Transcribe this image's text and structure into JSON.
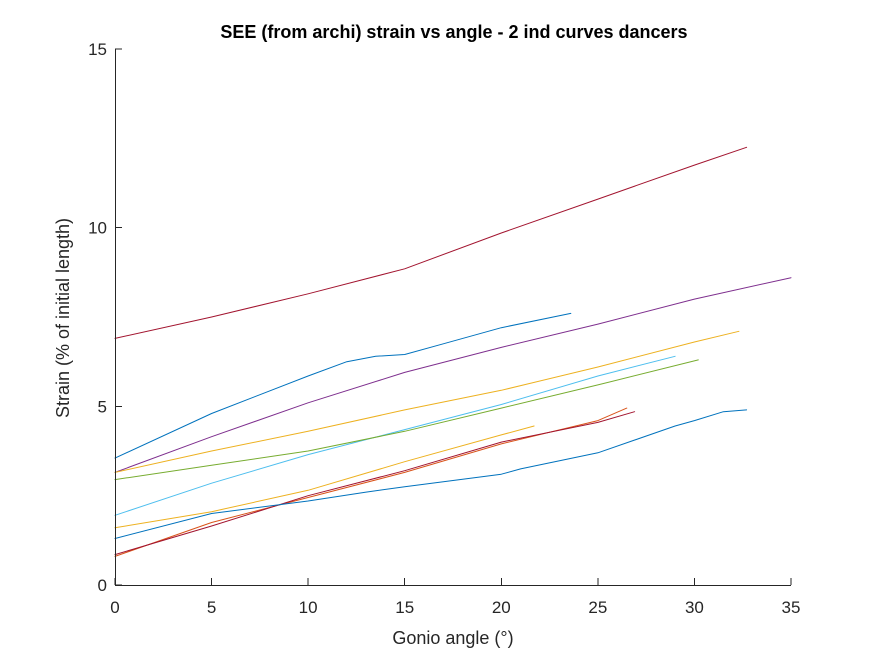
{
  "chart_data": {
    "type": "line",
    "title": "SEE (from archi) strain vs angle - 2 ind curves dancers",
    "xlabel": "Gonio angle (°)",
    "ylabel": "Strain (% of initial length)",
    "xlim": [
      0,
      35
    ],
    "ylim": [
      0,
      15
    ],
    "xticks": [
      0,
      5,
      10,
      15,
      20,
      25,
      30,
      35
    ],
    "yticks": [
      0,
      5,
      10,
      15
    ],
    "grid": false,
    "legend": "none",
    "series": [
      {
        "color": "#A2142F",
        "x": [
          0,
          5,
          10,
          15,
          20,
          25,
          30,
          32.7
        ],
        "y": [
          6.9,
          7.5,
          8.15,
          8.85,
          9.85,
          10.8,
          11.75,
          12.25
        ]
      },
      {
        "color": "#0072BD",
        "x": [
          0,
          5,
          10,
          12,
          13.5,
          15,
          17,
          20,
          23.6
        ],
        "y": [
          3.55,
          4.8,
          5.85,
          6.25,
          6.4,
          6.45,
          6.75,
          7.2,
          7.6
        ]
      },
      {
        "color": "#7E2F8E",
        "x": [
          0,
          5,
          10,
          15,
          20,
          25,
          30,
          35
        ],
        "y": [
          3.15,
          4.15,
          5.1,
          5.95,
          6.65,
          7.3,
          8.0,
          8.6
        ]
      },
      {
        "color": "#EDB120",
        "x": [
          0,
          5,
          10,
          15,
          20,
          25,
          30,
          32.3
        ],
        "y": [
          3.15,
          3.75,
          4.3,
          4.9,
          5.45,
          6.1,
          6.8,
          7.1
        ]
      },
      {
        "color": "#4DBEEE",
        "x": [
          0,
          5,
          10,
          15,
          20,
          25,
          29
        ],
        "y": [
          1.95,
          2.85,
          3.65,
          4.35,
          5.05,
          5.85,
          6.4
        ]
      },
      {
        "color": "#77AC30",
        "x": [
          0,
          5,
          10,
          15,
          20,
          25,
          30.2
        ],
        "y": [
          2.95,
          3.35,
          3.75,
          4.3,
          4.95,
          5.6,
          6.3
        ]
      },
      {
        "color": "#EDB120",
        "x": [
          0,
          5,
          10,
          15,
          20,
          21.7
        ],
        "y": [
          1.6,
          2.05,
          2.65,
          3.45,
          4.2,
          4.45
        ]
      },
      {
        "color": "#D95319",
        "x": [
          0,
          5,
          10,
          15,
          20,
          25,
          26.5
        ],
        "y": [
          0.8,
          1.75,
          2.45,
          3.15,
          3.95,
          4.6,
          4.95
        ]
      },
      {
        "color": "#A2142F",
        "x": [
          0,
          5,
          10,
          15,
          20,
          25,
          26.9
        ],
        "y": [
          0.85,
          1.65,
          2.5,
          3.2,
          4.0,
          4.55,
          4.85
        ]
      },
      {
        "color": "#0072BD",
        "x": [
          0,
          5,
          10,
          13,
          15,
          20,
          21,
          25,
          29,
          30,
          31.5,
          32.7
        ],
        "y": [
          1.3,
          2.0,
          2.35,
          2.6,
          2.75,
          3.1,
          3.25,
          3.7,
          4.45,
          4.6,
          4.85,
          4.9
        ]
      }
    ]
  }
}
